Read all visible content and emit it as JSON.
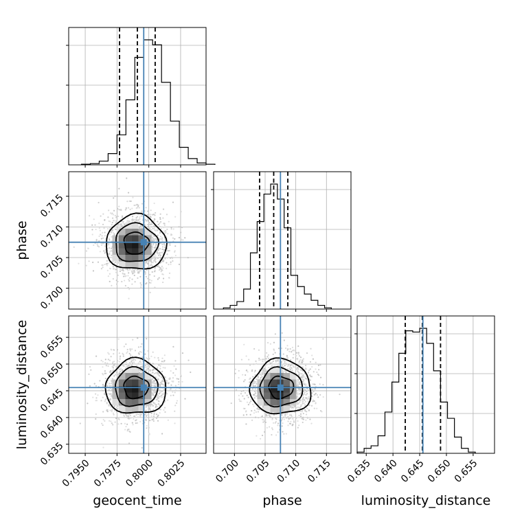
{
  "chart_data": {
    "type": "corner",
    "parameters": [
      "geocent_time",
      "phase",
      "luminosity_distance"
    ],
    "truths": {
      "geocent_time": 0.7996,
      "phase": 0.7075,
      "luminosity_distance": 0.6456
    },
    "quantile_lines": {
      "geocent_time": [
        0.7977,
        0.7991,
        0.8005
      ],
      "phase": [
        0.7041,
        0.7064,
        0.7087
      ],
      "luminosity_distance": [
        0.6423,
        0.6455,
        0.6489
      ]
    },
    "axis_ranges": {
      "geocent_time": [
        0.7937,
        0.8045
      ],
      "phase": [
        0.6966,
        0.719
      ],
      "luminosity_distance": [
        0.6333,
        0.659
      ]
    },
    "tick_labels": {
      "geocent_time": [
        "0.7950",
        "0.7975",
        "0.8000",
        "0.8025"
      ],
      "phase": [
        "0.700",
        "0.705",
        "0.710",
        "0.715"
      ],
      "luminosity_distance": [
        "0.635",
        "0.640",
        "0.645",
        "0.650",
        "0.655"
      ]
    },
    "histograms": {
      "geocent_time": {
        "bin_edges": [
          0.7947,
          0.7954,
          0.7961,
          0.7968,
          0.7975,
          0.7982,
          0.7989,
          0.7996,
          0.8003,
          0.801,
          0.8017,
          0.8024,
          0.8031,
          0.8038,
          0.8045,
          0.8052
        ],
        "counts": [
          0.5,
          1,
          3,
          9,
          24,
          52,
          86,
          100,
          96,
          66,
          35,
          14,
          5,
          1.5,
          0.5
        ]
      },
      "phase": {
        "bin_edges": [
          0.6982,
          0.6993,
          0.7004,
          0.7015,
          0.7026,
          0.7037,
          0.7048,
          0.7059,
          0.707,
          0.7081,
          0.7092,
          0.7103,
          0.7114,
          0.7125,
          0.7136,
          0.7147,
          0.7158
        ],
        "counts": [
          1,
          3,
          6,
          16,
          45,
          70,
          92,
          100,
          88,
          65,
          27,
          18,
          12,
          7,
          3,
          1
        ]
      },
      "luminosity_distance": {
        "bin_edges": [
          0.6333,
          0.6346,
          0.6359,
          0.6372,
          0.6385,
          0.6398,
          0.6411,
          0.6424,
          0.6437,
          0.645,
          0.6463,
          0.6476,
          0.6489,
          0.6502,
          0.6515,
          0.6528,
          0.6541,
          0.6554
        ],
        "counts": [
          1,
          4,
          6,
          14,
          33,
          57,
          80,
          98,
          97,
          100,
          88,
          66,
          41,
          28,
          13,
          4,
          1
        ]
      }
    },
    "grid": true,
    "legend": "none"
  }
}
